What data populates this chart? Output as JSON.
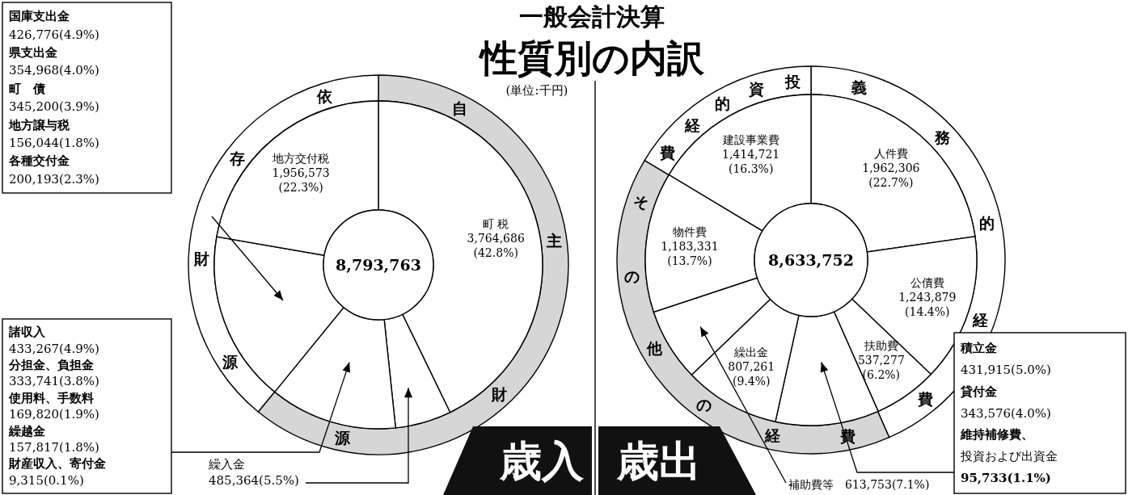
{
  "chart_data": [
    {
      "type": "donut",
      "title": "一般会計決算",
      "subtitle": "性質別の内訳",
      "categories": [
        "町 税",
        "繰入金",
        null,
        null,
        "地方交付税"
      ],
      "values": [
        3764686,
        485364,
        1103960,
        1483181,
        1956573
      ],
      "colors": [
        "#ffffff",
        "#ffffff",
        "#ffffff",
        "#ffffff",
        "#ffffff"
      ],
      "value_labels": [
        "3,764,686\n(42.8%)",
        "485,364(5.5%)",
        null,
        null,
        "1,956,573\n(22.3%)"
      ],
      "annotations": [
        "(単位:千円)",
        "8,793,763",
        "歳入",
        "国庫支出金",
        "426,776(4.9%)",
        "県支出金",
        "354,968(4.0%)",
        "町　債",
        "345,200(3.9%)",
        "地方譲与税",
        "156,044(1.8%)",
        "各種交付金",
        "200,193(2.3%)",
        "諸収入",
        "433,267(4.9%)",
        "分担金、負担金",
        "333,741(3.8%)",
        "使用料、手数料",
        "169,820(1.9%)",
        "繰越金",
        "157,817(1.8%)",
        "財産収入、寄付金",
        "9,315(0.1%)"
      ]
    },
    {
      "type": "donut",
      "categories": [
        "自主財源",
        "依存財源"
      ],
      "values": [
        60.9,
        39.1
      ],
      "colors": [
        "#d6d6d6",
        "#ffffff"
      ]
    },
    {
      "type": "donut",
      "categories": [
        "人件費",
        "公債費",
        "扶助費",
        null,
        "繰出金",
        "補助費等",
        "物件費",
        "建設事業費"
      ],
      "values": [
        1962306,
        1243879,
        537277,
        871224,
        807261,
        613753,
        1183331,
        1414721
      ],
      "colors": [
        "#ffffff",
        "#ffffff",
        "#ffffff",
        "#ffffff",
        "#ffffff",
        "#ffffff",
        "#ffffff",
        "#ffffff"
      ],
      "value_labels": [
        "1,962,306\n(22.7%)",
        "1,243,879\n(14.4%)",
        "537,277\n(6.2%)",
        null,
        "807,261\n(9.4%)",
        "613,753(7.1%)",
        "1,183,331\n(13.7%)",
        "1,414,721\n(16.3%)"
      ],
      "annotations": [
        "8,633,752",
        "歳出",
        "積立金",
        "431,915(5.0%)",
        "貸付金",
        "343,576(4.0%)",
        "維持補修費、",
        "投資および出資金",
        "95,733(1.1%)"
      ]
    },
    {
      "type": "donut",
      "categories": [
        "義務的経費",
        "その他の経費",
        "投資的経費"
      ],
      "values": [
        43.4,
        40.2,
        16.4
      ],
      "colors": [
        "#ffffff",
        "#d6d6d6",
        "#ffffff"
      ]
    }
  ]
}
